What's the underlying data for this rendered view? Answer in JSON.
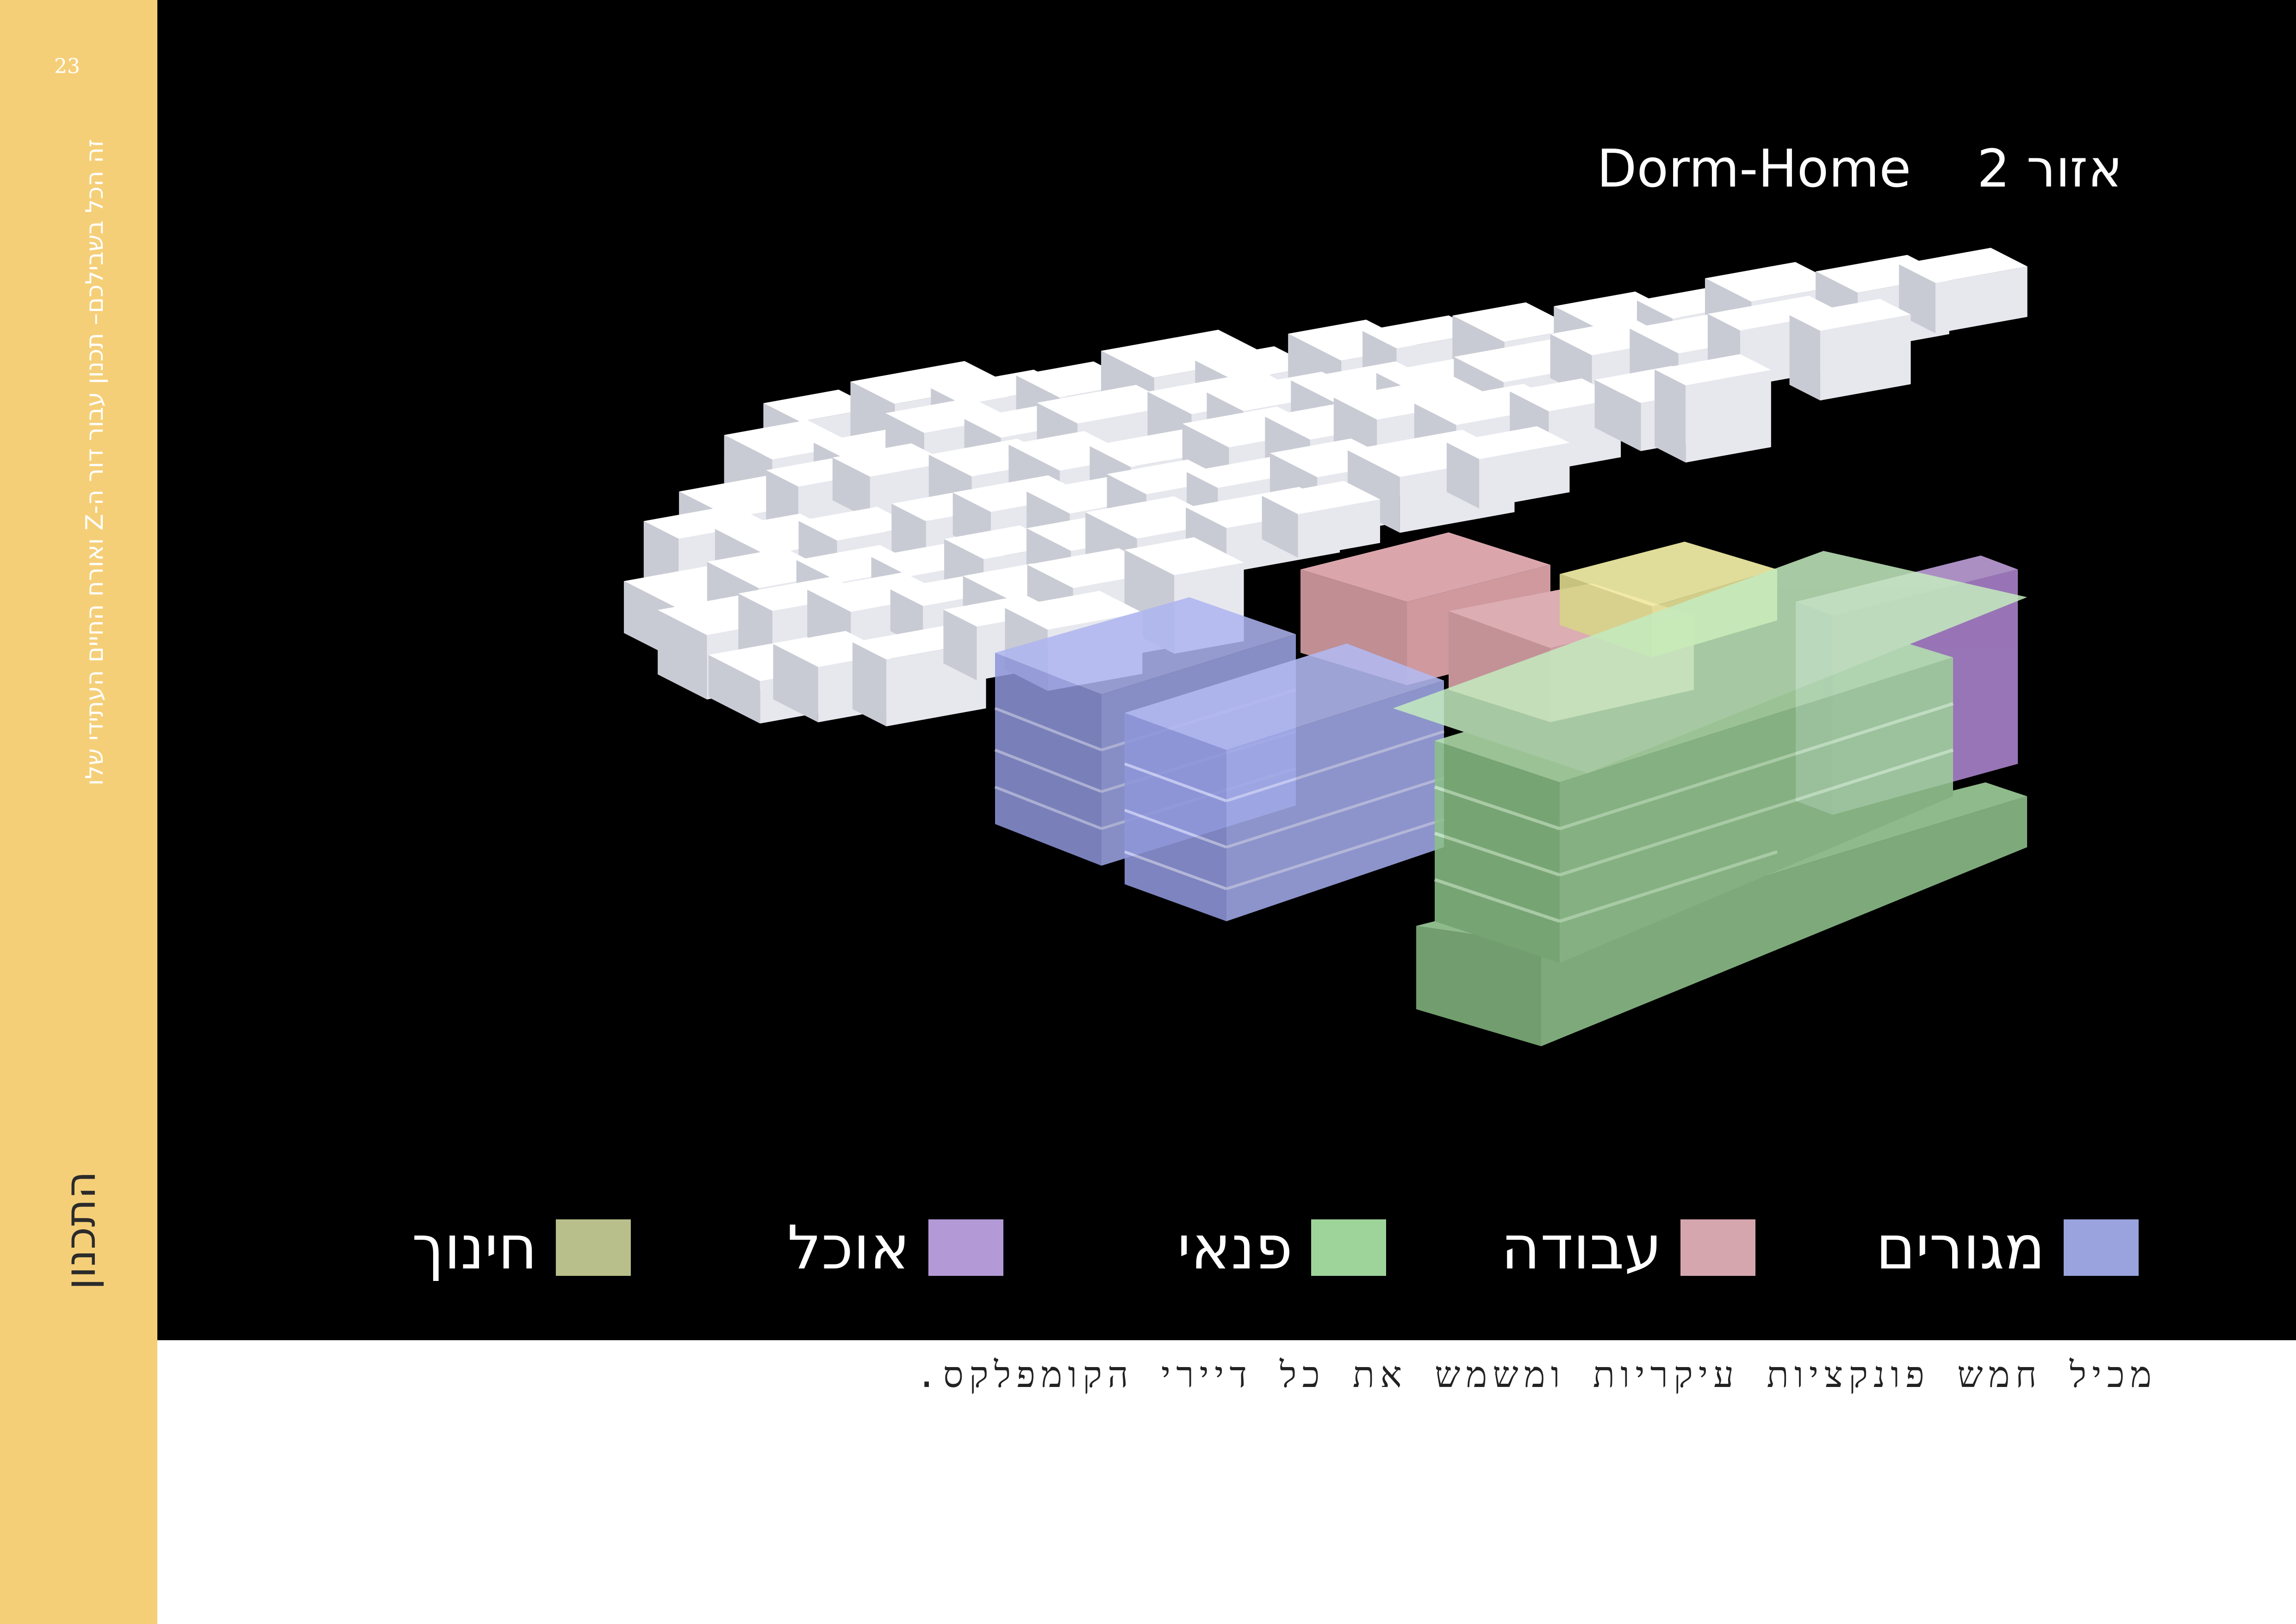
{
  "sidebar": {
    "page_number": "23",
    "subtitle": "זה הכל בשבילכם– תכנון עבור דור ה-Z ואורח החיים העתידי שלו",
    "section": "התכנון"
  },
  "hero": {
    "title_brand": "Dorm-Home",
    "title_zone": "אזור 2"
  },
  "legend": [
    {
      "label": "מגורים",
      "color": "#9aa3dd"
    },
    {
      "label": "עבודה",
      "color": "#d6a6ae"
    },
    {
      "label": "פנאי",
      "color": "#9ed39a"
    },
    {
      "label": "אוכל",
      "color": "#b39ad6"
    },
    {
      "label": "חינוך",
      "color": "#b9bf8a"
    }
  ],
  "caption": "מכיל חמש פונקציות עיקריות ומשמש את כל דיירי הקומפלקס."
}
